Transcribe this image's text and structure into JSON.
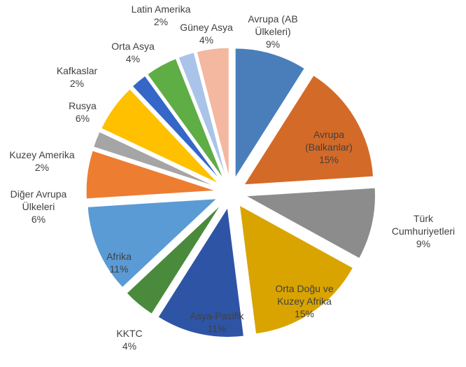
{
  "chart_data": {
    "type": "pie",
    "categories": [
      "Avrupa (AB Ülkeleri)",
      "Avrupa (Balkanlar)",
      "Türk Cumhuriyetleri",
      "Orta Doğu ve Kuzey Afrika",
      "Asya-Pasifik",
      "KKTC",
      "Afrika",
      "Diğer Avrupa Ülkeleri",
      "Kuzey Amerika",
      "Rusya",
      "Kafkaslar",
      "Orta Asya",
      "Latin Amerika",
      "Güney Asya"
    ],
    "values": [
      9,
      15,
      9,
      15,
      11,
      4,
      11,
      6,
      2,
      6,
      2,
      4,
      2,
      4
    ],
    "value_labels": [
      "9%",
      "15%",
      "9%",
      "15%",
      "11%",
      "4%",
      "11%",
      "6%",
      "2%",
      "6%",
      "2%",
      "4%",
      "2%",
      "4%"
    ],
    "colors": [
      "#4a7ebb",
      "#d46a28",
      "#8c8c8c",
      "#d9a400",
      "#2e54a6",
      "#4a8a3c",
      "#5b9bd5",
      "#ed7d31",
      "#a5a5a5",
      "#ffc000",
      "#3566c8",
      "#5fad45",
      "#a9c4e8",
      "#f4b7a0"
    ]
  }
}
